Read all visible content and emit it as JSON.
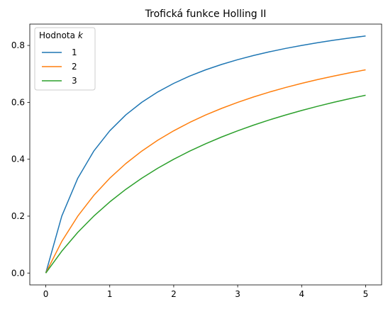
{
  "chart_data": {
    "type": "line",
    "title": "Trofická funkce Holling II",
    "xlabel": "",
    "ylabel": "",
    "xlim": [
      -0.25,
      5.25
    ],
    "ylim": [
      -0.0417,
      0.875
    ],
    "x_ticks": [
      0,
      1,
      2,
      3,
      4,
      5
    ],
    "x_tick_labels": [
      "0",
      "1",
      "2",
      "3",
      "4",
      "5"
    ],
    "y_ticks": [
      0.0,
      0.2,
      0.4,
      0.6,
      0.8
    ],
    "y_tick_labels": [
      "0.0",
      "0.2",
      "0.4",
      "0.6",
      "0.8"
    ],
    "grid": false,
    "legend": {
      "title_prefix": "Hodnota ",
      "title_var": "k",
      "placement": "upper-left"
    },
    "x": [
      0,
      0.25,
      0.5,
      0.75,
      1,
      1.25,
      1.5,
      1.75,
      2,
      2.25,
      2.5,
      2.75,
      3,
      3.25,
      3.5,
      3.75,
      4,
      4.25,
      4.5,
      4.75,
      5
    ],
    "series": [
      {
        "name": "1",
        "color": "#1f77b4",
        "values": [
          0,
          0.2,
          0.3333,
          0.4286,
          0.5,
          0.5556,
          0.6,
          0.6364,
          0.6667,
          0.6923,
          0.7143,
          0.7333,
          0.75,
          0.7647,
          0.7778,
          0.7895,
          0.8,
          0.8095,
          0.8182,
          0.8261,
          0.8333
        ]
      },
      {
        "name": "2",
        "color": "#ff7f0e",
        "values": [
          0,
          0.1111,
          0.2,
          0.2727,
          0.3333,
          0.3846,
          0.4286,
          0.4667,
          0.5,
          0.5294,
          0.5556,
          0.5789,
          0.6,
          0.619,
          0.6364,
          0.6522,
          0.6667,
          0.68,
          0.6923,
          0.7037,
          0.7143
        ]
      },
      {
        "name": "3",
        "color": "#2ca02c",
        "values": [
          0,
          0.0769,
          0.1429,
          0.2,
          0.25,
          0.2941,
          0.3333,
          0.3684,
          0.4,
          0.4286,
          0.4545,
          0.4783,
          0.5,
          0.52,
          0.5385,
          0.5556,
          0.5714,
          0.5862,
          0.6,
          0.6129,
          0.625
        ]
      }
    ]
  }
}
